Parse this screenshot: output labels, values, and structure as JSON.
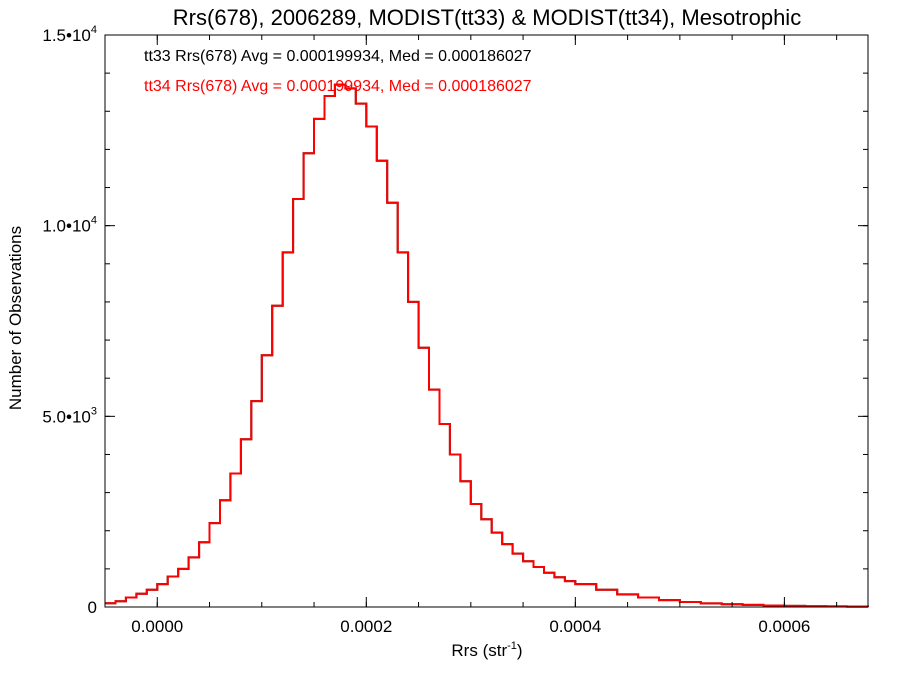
{
  "chart_data": {
    "type": "line",
    "style": "histogram-step",
    "title": "Rrs(678), 2006289, MODIST(tt33) & MODIST(tt34), Mesotrophic",
    "xlabel_main": "Rrs (str",
    "xlabel_sup": "-1",
    "xlabel_close": ")",
    "ylabel": "Number of Observations",
    "xlim": [
      -5e-05,
      0.00068
    ],
    "ylim": [
      0,
      15000
    ],
    "x_ticks": [
      {
        "value": 0.0,
        "label": "0.0000"
      },
      {
        "value": 0.0002,
        "label": "0.0002"
      },
      {
        "value": 0.0004,
        "label": "0.0004"
      },
      {
        "value": 0.0006,
        "label": "0.0006"
      }
    ],
    "y_ticks": [
      {
        "value": 0,
        "label": "0",
        "sup": ""
      },
      {
        "value": 5000,
        "label": "5.0•10",
        "sup": "3"
      },
      {
        "value": 10000,
        "label": "1.0•10",
        "sup": "4"
      },
      {
        "value": 15000,
        "label": "1.5•10",
        "sup": "4"
      }
    ],
    "grid": false,
    "annotations": [
      {
        "text": "tt33 Rrs(678) Avg = 0.000199934, Med = 0.000186027",
        "color": "#000000"
      },
      {
        "text": "tt34 Rrs(678) Avg = 0.000199934, Med = 0.000186027",
        "color": "#ff0000"
      }
    ],
    "series": [
      {
        "name": "tt33",
        "color": "#000000",
        "x": [
          -5e-05,
          -4e-05,
          -3e-05,
          -2e-05,
          -1e-05,
          0.0,
          1e-05,
          2e-05,
          3e-05,
          4e-05,
          5e-05,
          6e-05,
          7e-05,
          8e-05,
          9e-05,
          0.0001,
          0.00011,
          0.00012,
          0.00013,
          0.00014,
          0.00015,
          0.00016,
          0.00017,
          0.00018,
          0.00019,
          0.0002,
          0.00021,
          0.00022,
          0.00023,
          0.00024,
          0.00025,
          0.00026,
          0.00027,
          0.00028,
          0.00029,
          0.0003,
          0.00031,
          0.00032,
          0.00033,
          0.00034,
          0.00035,
          0.00036,
          0.00037,
          0.00038,
          0.00039,
          0.0004,
          0.00042,
          0.00044,
          0.00046,
          0.00048,
          0.0005,
          0.00052,
          0.00054,
          0.00056,
          0.00058,
          0.0006,
          0.00062,
          0.00064,
          0.00066,
          0.00068
        ],
        "values": [
          100,
          150,
          250,
          350,
          450,
          600,
          800,
          1000,
          1300,
          1700,
          2200,
          2800,
          3500,
          4400,
          5400,
          6600,
          7900,
          9300,
          10700,
          11900,
          12800,
          13400,
          13700,
          13600,
          13200,
          12600,
          11700,
          10600,
          9300,
          8000,
          6800,
          5700,
          4800,
          4000,
          3300,
          2700,
          2300,
          1950,
          1650,
          1400,
          1200,
          1050,
          900,
          780,
          680,
          600,
          450,
          330,
          250,
          180,
          130,
          95,
          70,
          55,
          40,
          30,
          22,
          15,
          10,
          5
        ]
      },
      {
        "name": "tt34",
        "color": "#ff0000",
        "x": [
          -5e-05,
          -4e-05,
          -3e-05,
          -2e-05,
          -1e-05,
          0.0,
          1e-05,
          2e-05,
          3e-05,
          4e-05,
          5e-05,
          6e-05,
          7e-05,
          8e-05,
          9e-05,
          0.0001,
          0.00011,
          0.00012,
          0.00013,
          0.00014,
          0.00015,
          0.00016,
          0.00017,
          0.00018,
          0.00019,
          0.0002,
          0.00021,
          0.00022,
          0.00023,
          0.00024,
          0.00025,
          0.00026,
          0.00027,
          0.00028,
          0.00029,
          0.0003,
          0.00031,
          0.00032,
          0.00033,
          0.00034,
          0.00035,
          0.00036,
          0.00037,
          0.00038,
          0.00039,
          0.0004,
          0.00042,
          0.00044,
          0.00046,
          0.00048,
          0.0005,
          0.00052,
          0.00054,
          0.00056,
          0.00058,
          0.0006,
          0.00062,
          0.00064,
          0.00066,
          0.00068
        ],
        "values": [
          100,
          150,
          250,
          350,
          450,
          600,
          800,
          1000,
          1300,
          1700,
          2200,
          2800,
          3500,
          4400,
          5400,
          6600,
          7900,
          9300,
          10700,
          11900,
          12800,
          13400,
          13700,
          13600,
          13200,
          12600,
          11700,
          10600,
          9300,
          8000,
          6800,
          5700,
          4800,
          4000,
          3300,
          2700,
          2300,
          1950,
          1650,
          1400,
          1200,
          1050,
          900,
          780,
          680,
          600,
          450,
          330,
          250,
          180,
          130,
          95,
          70,
          55,
          40,
          30,
          22,
          15,
          10,
          5
        ]
      }
    ]
  }
}
